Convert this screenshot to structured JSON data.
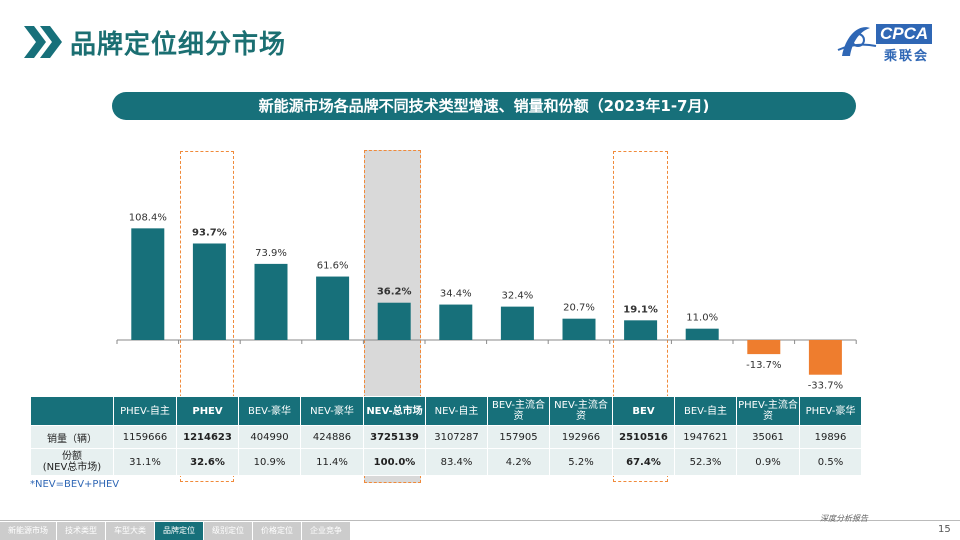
{
  "page_title": "品牌定位细分市场",
  "logo": {
    "text": "CPCA",
    "sub": "乘联会"
  },
  "banner_title": "新能源市场各品牌不同技术类型增速、销量和份额（2023年1-7月)",
  "chart_data": {
    "type": "bar",
    "categories": [
      "PHEV-自主",
      "PHEV",
      "BEV-豪华",
      "NEV-豪华",
      "NEV-总市场",
      "NEV-自主",
      "BEV-主流合资",
      "NEV-主流合资",
      "BEV",
      "BEV-自主",
      "PHEV-主流合资",
      "PHEV-豪华"
    ],
    "values": [
      108.4,
      93.7,
      73.9,
      61.6,
      36.2,
      34.4,
      32.4,
      20.7,
      19.1,
      11.0,
      -13.7,
      -33.7
    ],
    "value_labels": [
      "108.4%",
      "93.7%",
      "73.9%",
      "61.6%",
      "36.2%",
      "34.4%",
      "32.4%",
      "20.7%",
      "19.1%",
      "11.0%",
      "-13.7%",
      "-33.7%"
    ],
    "bold_indices": [
      1,
      4,
      8
    ],
    "colors": {
      "positive": "#17707a",
      "negative": "#ee7d2e"
    },
    "ylim": [
      -40,
      115
    ]
  },
  "table": {
    "headers": [
      "PHEV-自主",
      "PHEV",
      "BEV-豪华",
      "NEV-豪华",
      "NEV-总市场",
      "NEV-自主",
      "BEV-主流合资",
      "NEV-主流合资",
      "BEV",
      "BEV-自主",
      "PHEV-主流合资",
      "PHEV-豪华"
    ],
    "rows": [
      {
        "label": "销量（辆）",
        "values": [
          "1159666",
          "1214623",
          "404990",
          "424886",
          "3725139",
          "3107287",
          "157905",
          "192966",
          "2510516",
          "1947621",
          "35061",
          "19896"
        ]
      },
      {
        "label": "份额\n(NEV总市场)",
        "values": [
          "31.1%",
          "32.6%",
          "10.9%",
          "11.4%",
          "100.0%",
          "83.4%",
          "4.2%",
          "5.2%",
          "67.4%",
          "52.3%",
          "0.9%",
          "0.5%"
        ]
      }
    ]
  },
  "note": "*NEV=BEV+PHEV",
  "footer": {
    "nav": [
      "新能源市场",
      "技术类型",
      "车型大类",
      "品牌定位",
      "级别定位",
      "价格定位",
      "企业竞争"
    ],
    "active_index": 3,
    "report_label": "深度分析报告",
    "page_number": "15"
  }
}
